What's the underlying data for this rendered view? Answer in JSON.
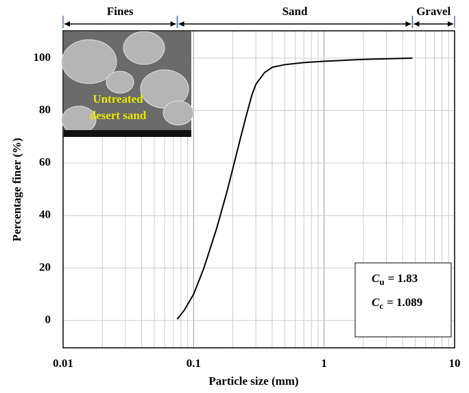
{
  "chart_data": {
    "type": "line",
    "xlabel": "Particle size (mm)",
    "ylabel": "Percentage finer (%)",
    "log_x": true,
    "grid": true,
    "xlim": [
      0.01,
      10
    ],
    "xticks": [
      0.01,
      0.1,
      1,
      10
    ],
    "ylim": [
      -10.4,
      110.4
    ],
    "yticks": [
      0,
      20,
      40,
      60,
      80,
      100
    ],
    "series": [
      {
        "color": "#000000",
        "x": [
          0.075,
          0.085,
          0.1,
          0.12,
          0.15,
          0.18,
          0.2,
          0.23,
          0.25,
          0.28,
          0.3,
          0.35,
          0.4,
          0.5,
          0.7,
          1,
          2,
          4.75
        ],
        "values": [
          0.5,
          4,
          10,
          20,
          35,
          49,
          58,
          70,
          77,
          86,
          90,
          94.5,
          96.5,
          97.5,
          98.3,
          98.8,
          99.5,
          100
        ]
      }
    ],
    "zones": [
      {
        "name": "Fines",
        "range": [
          0.01,
          0.075
        ]
      },
      {
        "name": "Sand",
        "range": [
          0.075,
          4.75
        ]
      },
      {
        "name": "Gravel",
        "range": [
          4.75,
          10
        ]
      }
    ],
    "inset_text": [
      "Untreated",
      "desert sand"
    ],
    "coefficients": [
      {
        "symbol": "C",
        "subscript": "u",
        "text": "= 1.83"
      },
      {
        "symbol": "C",
        "subscript": "c",
        "text": "= 1.089"
      }
    ]
  }
}
